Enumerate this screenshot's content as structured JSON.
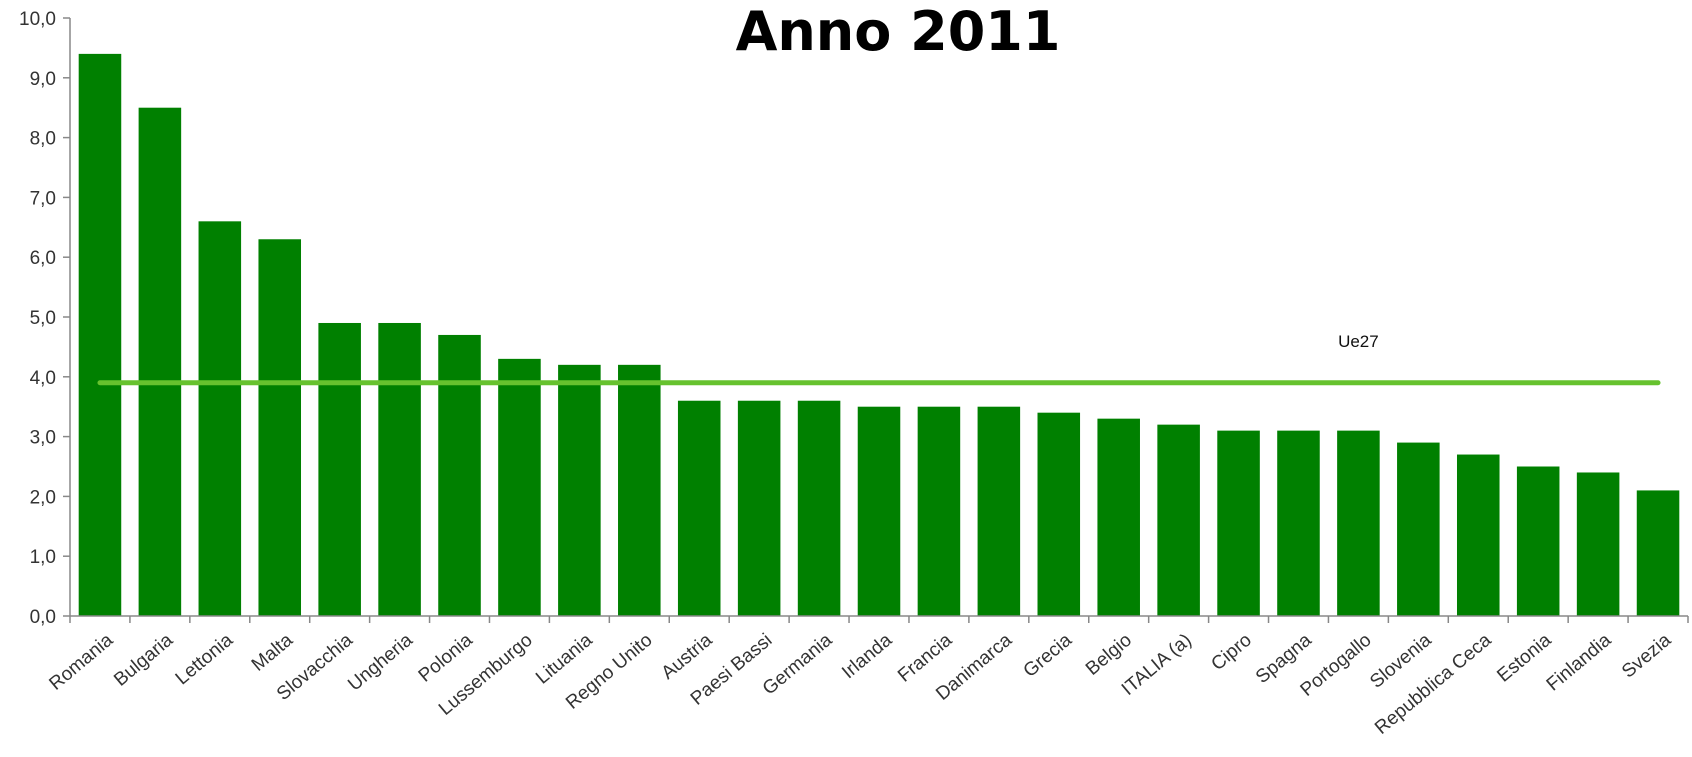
{
  "chart_data": {
    "type": "bar",
    "title": "Anno 2011",
    "xlabel": "",
    "ylabel": "",
    "ylim": [
      0,
      10
    ],
    "ytick_step": 1,
    "ytick_labels": [
      "0,0",
      "1,0",
      "2,0",
      "3,0",
      "4,0",
      "5,0",
      "6,0",
      "7,0",
      "8,0",
      "9,0",
      "10,0"
    ],
    "grid": false,
    "legend": "none",
    "bar_color": "#008000",
    "categories": [
      "Romania",
      "Bulgaria",
      "Lettonia",
      "Malta",
      "Slovacchia",
      "Ungheria",
      "Polonia",
      "Lussemburgo",
      "Lituania",
      "Regno Unito",
      "Austria",
      "Paesi Bassi",
      "Germania",
      "Irlanda",
      "Francia",
      "Danimarca",
      "Grecia",
      "Belgio",
      "ITALIA (a)",
      "Cipro",
      "Spagna",
      "Portogallo",
      "Slovenia",
      "Repubblica Ceca",
      "Estonia",
      "Finlandia",
      "Svezia"
    ],
    "values": [
      9.4,
      8.5,
      6.6,
      6.3,
      4.9,
      4.9,
      4.7,
      4.3,
      4.2,
      4.2,
      3.6,
      3.6,
      3.6,
      3.5,
      3.5,
      3.5,
      3.4,
      3.3,
      3.2,
      3.1,
      3.1,
      3.1,
      2.9,
      2.7,
      2.5,
      2.4,
      2.1
    ],
    "reference_line": {
      "label": "Ue27",
      "value": 3.9,
      "color": "#66c22e"
    }
  }
}
